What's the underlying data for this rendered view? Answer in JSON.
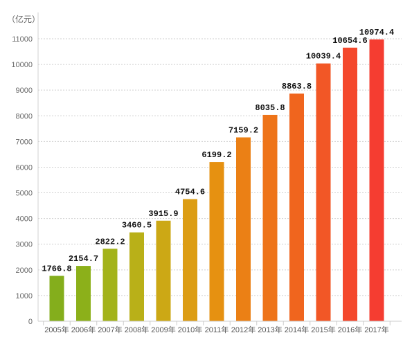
{
  "chart_data": {
    "type": "bar",
    "unit_label": "（亿元）",
    "categories": [
      "2005年",
      "2006年",
      "2007年",
      "2008年",
      "2009年",
      "2010年",
      "2011年",
      "2012年",
      "2013年",
      "2014年",
      "2015年",
      "2016年",
      "2017年"
    ],
    "values": [
      1766.8,
      2154.7,
      2822.2,
      3460.5,
      3915.9,
      4754.6,
      6199.2,
      7159.2,
      8035.8,
      8863.8,
      10039.4,
      10654.6,
      10974.4
    ],
    "value_labels": [
      "1766.8",
      "2154.7",
      "2822.2",
      "3460.5",
      "3915.9",
      "4754.6",
      "6199.2",
      "7159.2",
      "8035.8",
      "8863.8",
      "10039.4",
      "10654.6",
      "10974.4"
    ],
    "yticks": [
      0,
      1000,
      2000,
      3000,
      4000,
      5000,
      6000,
      7000,
      8000,
      9000,
      10000,
      11000
    ],
    "ylim": [
      0,
      11000
    ],
    "grid": true,
    "bar_colors": [
      "#84ae1c",
      "#8cb01a",
      "#a3b31a",
      "#b9b018",
      "#cca815",
      "#dc9d14",
      "#e69111",
      "#eb8015",
      "#ee7419",
      "#f0651e",
      "#f25726",
      "#f4482c",
      "#f53d31"
    ]
  }
}
